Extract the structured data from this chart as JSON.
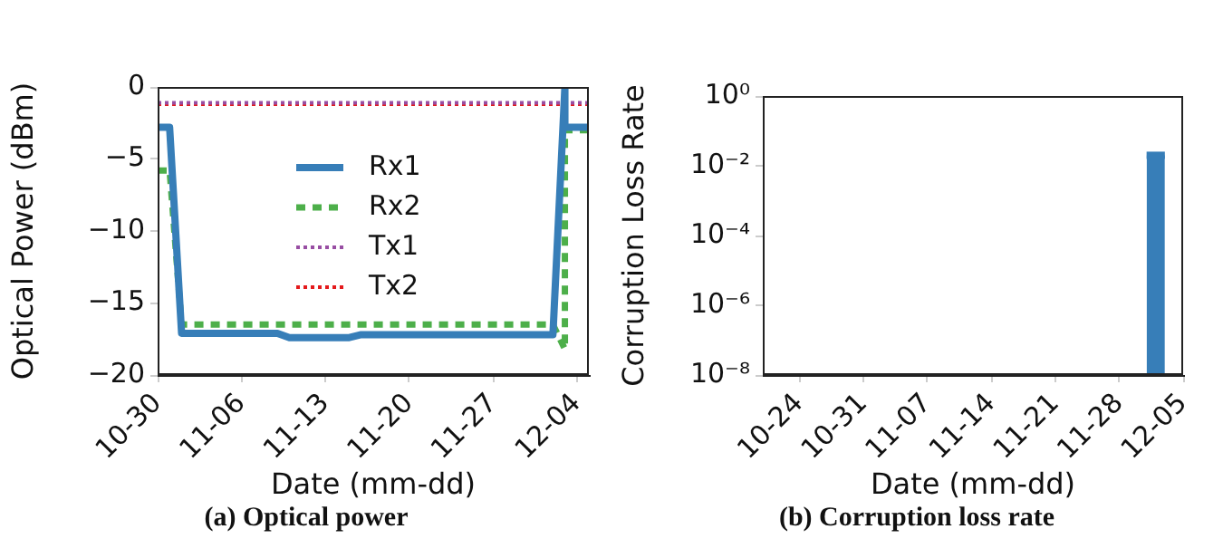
{
  "chart_data": [
    {
      "type": "line",
      "title": "(a) Optical power",
      "xlabel": "Date (mm-dd)",
      "ylabel": "Optical Power (dBm)",
      "xlim": [
        "--10-30",
        "--12-05"
      ],
      "xticks": [
        {
          "value": "--10-30",
          "label": "10-30"
        },
        {
          "value": "--11-06",
          "label": "11-06"
        },
        {
          "value": "--11-13",
          "label": "11-13"
        },
        {
          "value": "--11-20",
          "label": "11-20"
        },
        {
          "value": "--11-27",
          "label": "11-27"
        },
        {
          "value": "--12-04",
          "label": "12-04"
        }
      ],
      "ylim": [
        -20,
        0
      ],
      "yticks": [
        {
          "value": -20,
          "label": "−20"
        },
        {
          "value": -15,
          "label": "−15"
        },
        {
          "value": -10,
          "label": "−10"
        },
        {
          "value": -5,
          "label": "−5"
        },
        0
      ],
      "grid": false,
      "legend": "center",
      "series": [
        {
          "name": "Rx1",
          "color": "#377eb8",
          "line_style": "solid",
          "x": [
            "--10-30",
            "--10-31",
            "--11-01",
            "--11-09",
            "--11-10",
            "--11-15",
            "--11-16",
            "--12-02",
            "--12-03",
            "--12-03",
            "--12-05"
          ],
          "values": [
            -2.8,
            -2.8,
            -17.1,
            -17.1,
            -17.4,
            -17.4,
            -17.2,
            -17.2,
            0,
            -2.8,
            -2.8
          ]
        },
        {
          "name": "Rx2",
          "color": "#4daf4a",
          "line_style": "dashed",
          "x": [
            "--10-30",
            "--10-31",
            "--11-01",
            "--12-02",
            "--12-03",
            "--12-03",
            "--12-05"
          ],
          "values": [
            -5.8,
            -5.8,
            -16.5,
            -16.5,
            -18.2,
            -3.0,
            -3.0
          ]
        },
        {
          "name": "Tx1",
          "color": "#984ea3",
          "line_style": "dotted",
          "x": [
            "--10-30",
            "--12-05"
          ],
          "values": [
            -1.1,
            -1.1
          ]
        },
        {
          "name": "Tx2",
          "color": "#e41a1c",
          "line_style": "dotted",
          "x": [
            "--10-30",
            "--12-05"
          ],
          "values": [
            -1.2,
            -1.2
          ]
        }
      ]
    },
    {
      "type": "area",
      "title": "(b) Corruption loss rate",
      "xlabel": "Date (mm-dd)",
      "ylabel": "Corruption Loss Rate",
      "log": "y",
      "xlim": [
        "--10-20",
        "--12-05"
      ],
      "xticks": [
        {
          "value": "--10-24",
          "label": "10-24"
        },
        {
          "value": "--10-31",
          "label": "10-31"
        },
        {
          "value": "--11-07",
          "label": "11-07"
        },
        {
          "value": "--11-14",
          "label": "11-14"
        },
        {
          "value": "--11-21",
          "label": "11-21"
        },
        {
          "value": "--11-28",
          "label": "11-28"
        },
        {
          "value": "--12-05",
          "label": "12-05"
        }
      ],
      "ylim": [
        1e-08,
        1
      ],
      "yticks": [
        {
          "value": 1e-08,
          "label": "10⁻⁸"
        },
        {
          "value": 1e-06,
          "label": "10⁻⁶"
        },
        {
          "value": 0.0001,
          "label": "10⁻⁴"
        },
        {
          "value": 0.01,
          "label": "10⁻²"
        },
        {
          "value": 1,
          "label": "10⁰"
        }
      ],
      "grid": false,
      "series": [
        {
          "color": "#377eb8",
          "x": [
            "--12-01",
            "--12-02",
            "--12-03"
          ],
          "values": [
            0.02,
            0.02,
            0.02
          ]
        }
      ]
    }
  ]
}
